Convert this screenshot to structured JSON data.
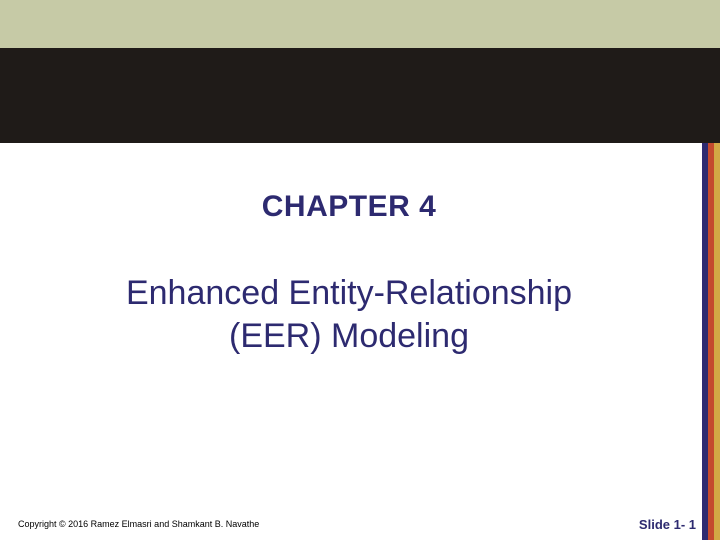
{
  "colors": {
    "top_band": "#c6caa6",
    "dark_band": "#1f1b18",
    "stripe_1": "#2d2a70",
    "stripe_2": "#c44a2e",
    "stripe_3": "#d2a845",
    "heading_text": "#2d2a70",
    "slide_num_text": "#2d2a70"
  },
  "typography": {
    "chapter_fontsize": 30,
    "subtitle_fontsize": 34,
    "copyright_fontsize": 9,
    "slidenum_fontsize": 13
  },
  "content": {
    "chapter_label": "CHAPTER 4",
    "title_line1": "Enhanced Entity-Relationship",
    "title_line2": "(EER) Modeling"
  },
  "footer": {
    "copyright": "Copyright © 2016 Ramez Elmasri and Shamkant B. Navathe",
    "slide_label": "Slide 1- 1"
  }
}
